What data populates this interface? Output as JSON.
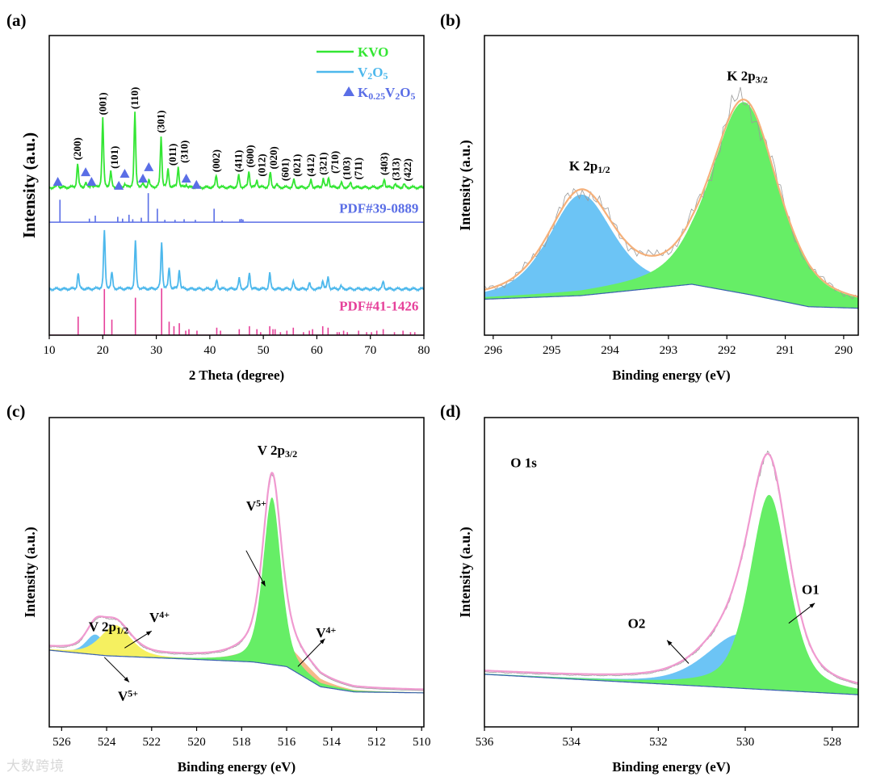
{
  "watermark": "大数跨境",
  "colors": {
    "kvo": "#33e633",
    "v2o5": "#4db8ec",
    "pdf39": "#5a6ee6",
    "pdf41": "#e6409a",
    "green_fill": "#66ee66",
    "blue_fill": "#6cc4f5",
    "yellow_fill": "#f5f060",
    "orange_fill": "#f5b98a",
    "envelope_b": "#f5b07a",
    "envelope_cd": "#f09ad0",
    "raw": "#9a9a9a",
    "bg_line": "#8a7a30"
  },
  "chart_data": [
    {
      "panel": "(a)",
      "type": "line",
      "xlabel": "2 Theta (degree)",
      "ylabel": "Intensity (a.u.)",
      "xlim": [
        10,
        80
      ],
      "ylim": [
        0,
        100
      ],
      "xticks": [
        "10",
        "20",
        "30",
        "40",
        "50",
        "60",
        "70",
        "80"
      ],
      "legend": {
        "placement": "top-right",
        "entries": [
          {
            "label": [
              {
                "t": "KVO"
              }
            ],
            "kind": "line",
            "color": "#33e633"
          },
          {
            "label": [
              {
                "t": "V"
              },
              {
                "t": "2",
                "sub": true
              },
              {
                "t": "O"
              },
              {
                "t": "5",
                "sub": true
              }
            ],
            "kind": "line",
            "color": "#4db8ec"
          },
          {
            "label": [
              {
                "t": "K"
              },
              {
                "t": "0.25",
                "sub": true
              },
              {
                "t": "V"
              },
              {
                "t": "2",
                "sub": true
              },
              {
                "t": "O"
              },
              {
                "t": "5",
                "sub": true
              }
            ],
            "kind": "triangle",
            "color": "#5a6ee6"
          }
        ]
      },
      "series": [
        {
          "name": "KVO",
          "kind": "pattern",
          "baseline": 49.3,
          "width": 0.35,
          "color": "#33e633",
          "peaks": [
            [
              11.6,
              1.5
            ],
            [
              15.3,
              8
            ],
            [
              16.8,
              1.5
            ],
            [
              17.9,
              1
            ],
            [
              20,
              23
            ],
            [
              21.5,
              5
            ],
            [
              23,
              1
            ],
            [
              24.1,
              1
            ],
            [
              26,
              25
            ],
            [
              27.5,
              1
            ],
            [
              28.6,
              2.5
            ],
            [
              30.9,
              17
            ],
            [
              32.2,
              6
            ],
            [
              34.1,
              7
            ],
            [
              35.6,
              1
            ],
            [
              37.5,
              0.5
            ],
            [
              41.2,
              4
            ],
            [
              45.4,
              4
            ],
            [
              47.3,
              5.5
            ],
            [
              48.8,
              2.5
            ],
            [
              51.3,
              5
            ],
            [
              52.5,
              1
            ],
            [
              55.7,
              2.5
            ],
            [
              58.9,
              2.5
            ],
            [
              61.2,
              3
            ],
            [
              62.2,
              3.5
            ],
            [
              64.6,
              1.5
            ],
            [
              66.3,
              1.5
            ],
            [
              72.6,
              3
            ],
            [
              74.6,
              1.2
            ],
            [
              76.3,
              1
            ]
          ]
        },
        {
          "name": "PDF#39-0889",
          "kind": "sticks",
          "baseline": 37.7,
          "color": "#5a6ee6",
          "sticks": [
            [
              12,
              7.5
            ],
            [
              17.5,
              1.2
            ],
            [
              18.6,
              2.2
            ],
            [
              22.8,
              1.8
            ],
            [
              23.7,
              1.2
            ],
            [
              24.9,
              2.5
            ],
            [
              25.6,
              1
            ],
            [
              27.2,
              1.5
            ],
            [
              28.5,
              9.7
            ],
            [
              30.2,
              4.5
            ],
            [
              31.6,
              0.8
            ],
            [
              33.5,
              0.8
            ],
            [
              35.2,
              1
            ],
            [
              37.3,
              0.8
            ],
            [
              40.8,
              4.5
            ],
            [
              42.3,
              0.6
            ],
            [
              45.6,
              1
            ],
            [
              45.9,
              1.1
            ],
            [
              46.2,
              0.9
            ]
          ]
        },
        {
          "name": "V2O5",
          "kind": "pattern",
          "baseline": 15.4,
          "width": 0.35,
          "color": "#4db8ec",
          "peaks": [
            [
              15.4,
              5.4
            ],
            [
              20.3,
              19.5
            ],
            [
              21.7,
              5.4
            ],
            [
              26.1,
              16
            ],
            [
              31,
              15.5
            ],
            [
              32.4,
              7
            ],
            [
              34.3,
              6.5
            ],
            [
              41.3,
              3
            ],
            [
              45.5,
              3.5
            ],
            [
              47.4,
              5.5
            ],
            [
              51.2,
              5.2
            ],
            [
              55.6,
              2.5
            ],
            [
              58.6,
              2
            ],
            [
              61.1,
              3
            ],
            [
              62.1,
              4
            ],
            [
              64.5,
              1
            ],
            [
              72.4,
              2.5
            ]
          ]
        },
        {
          "name": "PDF#41-1426",
          "kind": "sticks",
          "baseline": 0,
          "color": "#e6409a",
          "sticks": [
            [
              15.4,
              6.2
            ],
            [
              20.3,
              15.4
            ],
            [
              21.7,
              5.2
            ],
            [
              26.1,
              12.5
            ],
            [
              31,
              15.6
            ],
            [
              32.4,
              4.5
            ],
            [
              33.3,
              3
            ],
            [
              34.3,
              4
            ],
            [
              35.5,
              1.5
            ],
            [
              36.1,
              2
            ],
            [
              37.6,
              1.5
            ],
            [
              41.3,
              2.5
            ],
            [
              42,
              1.5
            ],
            [
              45.5,
              2
            ],
            [
              47.4,
              3
            ],
            [
              48.8,
              2
            ],
            [
              49.5,
              1
            ],
            [
              51.2,
              3
            ],
            [
              51.8,
              2
            ],
            [
              52.2,
              2
            ],
            [
              53.2,
              1
            ],
            [
              54.4,
              1.5
            ],
            [
              55.6,
              2.5
            ],
            [
              57.5,
              1
            ],
            [
              58.6,
              1.5
            ],
            [
              59.2,
              2
            ],
            [
              61.1,
              3
            ],
            [
              62.1,
              2.5
            ],
            [
              63.8,
              1
            ],
            [
              64.2,
              1
            ],
            [
              65,
              1.5
            ],
            [
              65.7,
              1
            ],
            [
              67.8,
              1.5
            ],
            [
              69.3,
              1
            ],
            [
              70.2,
              1
            ],
            [
              71.2,
              1.5
            ],
            [
              72.4,
              2
            ],
            [
              74.5,
              1
            ],
            [
              76.1,
              1.5
            ],
            [
              77.5,
              1
            ],
            [
              78.3,
              1
            ]
          ]
        }
      ],
      "series_labels": [
        {
          "text": "PDF#39-0889",
          "color": "#5a6ee6",
          "x": 79,
          "y": 40.8
        },
        {
          "text": "PDF#41-1426",
          "color": "#e6409a",
          "x": 79,
          "y": 8.2
        }
      ],
      "markers": {
        "symbol": "triangle",
        "color": "#5a6ee6",
        "points": [
          [
            11.6,
            51.2
          ],
          [
            16.8,
            54.4
          ],
          [
            17.9,
            51.2
          ],
          [
            23.0,
            49.9
          ],
          [
            24.1,
            53.9
          ],
          [
            27.5,
            52.3
          ],
          [
            28.6,
            56.1
          ],
          [
            35.6,
            52.3
          ],
          [
            37.5,
            50.2
          ]
        ]
      },
      "hkl_labels": [
        {
          "text": "(200)",
          "x": 15.3
        },
        {
          "text": "(001)",
          "x": 20
        },
        {
          "text": "(101)",
          "x": 21.5
        },
        {
          "text": "(110)",
          "x": 26
        },
        {
          "text": "(301)",
          "x": 30.9
        },
        {
          "text": "(011)",
          "x": 32.2
        },
        {
          "text": "(310)",
          "x": 34.1
        },
        {
          "text": "(002)",
          "x": 41.2
        },
        {
          "text": "(411)",
          "x": 45.4
        },
        {
          "text": "(600)",
          "x": 47.3
        },
        {
          "text": "(012)",
          "x": 48.8
        },
        {
          "text": "(020)",
          "x": 51.3
        },
        {
          "text": "(601)",
          "x": 52.5
        },
        {
          "text": "(021)",
          "x": 55.7
        },
        {
          "text": "(412)",
          "x": 58.9
        },
        {
          "text": "(321)",
          "x": 61.2
        },
        {
          "text": "(710)",
          "x": 62.2
        },
        {
          "text": "(103)",
          "x": 64.6
        },
        {
          "text": "(711)",
          "x": 66.3
        },
        {
          "text": "(403)",
          "x": 72.6
        },
        {
          "text": "(313)",
          "x": 74.6
        },
        {
          "text": "(422)",
          "x": 76.3
        }
      ]
    },
    {
      "panel": "(b)",
      "type": "area",
      "xlabel": "Binding energy (eV)",
      "ylabel": "Intensity (a.u.)",
      "xlim": [
        296.15,
        289.75
      ],
      "ylim": [
        0,
        100
      ],
      "xticks": [
        "296",
        "295",
        "294",
        "293",
        "292",
        "291",
        "290"
      ],
      "background": [
        [
          296.15,
          12
        ],
        [
          294.5,
          13.2
        ],
        [
          292.6,
          17
        ],
        [
          291.6,
          13.5
        ],
        [
          290.6,
          9.5
        ],
        [
          289.75,
          9
        ]
      ],
      "components": [
        {
          "name": "K 2p1/2",
          "center": 294.5,
          "height": 33.7,
          "fwhm": 1.3,
          "fill": "#6cc4f5"
        },
        {
          "name": "K 2p3/2",
          "center": 291.7,
          "height": 63.9,
          "fwhm": 1.35,
          "fill": "#66ee66"
        }
      ],
      "envelope_color": "#f5b07a",
      "raw_noise": 0.08,
      "annotations": [
        {
          "label": [
            {
              "t": "K 2p"
            },
            {
              "t": "1/2",
              "sub": true
            }
          ],
          "x": 294.7,
          "y": 55
        },
        {
          "label": [
            {
              "t": "K 2p"
            },
            {
              "t": "3/2",
              "sub": true
            }
          ],
          "x": 292.0,
          "y": 85
        }
      ]
    },
    {
      "panel": "(c)",
      "type": "area",
      "xlabel": "Binding energy (eV)",
      "ylabel": "Intensity (a.u.)",
      "xlim": [
        526.55,
        509.9
      ],
      "ylim": [
        0,
        100
      ],
      "xticks": [
        "526",
        "524",
        "522",
        "520",
        "518",
        "516",
        "514",
        "512",
        "510"
      ],
      "background": [
        [
          526.55,
          24.8
        ],
        [
          524,
          23
        ],
        [
          520,
          21.8
        ],
        [
          517.5,
          21
        ],
        [
          516,
          19.5
        ],
        [
          514.5,
          13
        ],
        [
          513,
          11.3
        ],
        [
          509.9,
          11
        ]
      ],
      "components": [
        {
          "name": "V5+ 2p1/2",
          "center": 524.5,
          "height": 6.5,
          "fwhm": 1.0,
          "fill": "#6cc4f5"
        },
        {
          "name": "V4+ 2p1/2",
          "center": 523.6,
          "height": 10,
          "fwhm": 1.6,
          "fill": "#f5f060"
        },
        {
          "name": "V4+ 2p3/2",
          "center": 516.3,
          "height": 7.5,
          "fwhm": 2.8,
          "fill": "#f5b98a"
        },
        {
          "name": "V5+ 2p3/2",
          "center": 516.65,
          "height": 54,
          "fwhm": 0.95,
          "fill": "#66ee66"
        }
      ],
      "envelope_color": "#f09ad0",
      "raw_noise": 0.015,
      "annotations": [
        {
          "label": [
            {
              "t": "V 2p"
            },
            {
              "t": "3/2",
              "sub": true
            }
          ],
          "x": 517.3,
          "y": 88
        },
        {
          "label": [
            {
              "t": "V 2p"
            },
            {
              "t": "1/2",
              "sub": true
            }
          ],
          "x": 524.8,
          "y": 31
        },
        {
          "label": [
            {
              "t": "V"
            },
            {
              "t": "5+",
              "sup": true
            }
          ],
          "x": 517.8,
          "y": 70,
          "arrow": [
            [
              517.8,
              57
            ],
            [
              516.95,
              45.5
            ]
          ]
        },
        {
          "label": [
            {
              "t": "V"
            },
            {
              "t": "4+",
              "sup": true
            }
          ],
          "x": 522.1,
          "y": 34,
          "arrow": [
            [
              523.2,
              25.5
            ],
            [
              522.0,
              31
            ]
          ]
        },
        {
          "label": [
            {
              "t": "V"
            },
            {
              "t": "5+",
              "sup": true
            }
          ],
          "x": 523.5,
          "y": 8.5,
          "arrow": [
            [
              524.1,
              22.5
            ],
            [
              523.0,
              14.5
            ]
          ]
        },
        {
          "label": [
            {
              "t": "V"
            },
            {
              "t": "4+",
              "sup": true
            }
          ],
          "x": 514.7,
          "y": 29,
          "arrow": [
            [
              515.5,
              19.5
            ],
            [
              514.3,
              28.5
            ]
          ]
        }
      ]
    },
    {
      "panel": "(d)",
      "type": "area",
      "xlabel": "Binding energy (eV)",
      "ylabel": "Intensity (a.u.)",
      "xlim": [
        536.0,
        527.4
      ],
      "ylim": [
        0,
        100
      ],
      "xticks": [
        "536",
        "534",
        "532",
        "530",
        "528"
      ],
      "background": [
        [
          536.0,
          17
        ],
        [
          527.4,
          10.4
        ]
      ],
      "components": [
        {
          "name": "O2",
          "center": 530.1,
          "height": 17.5,
          "fwhm": 1.9,
          "fill": "#6cc4f5"
        },
        {
          "name": "O1",
          "center": 529.45,
          "height": 63,
          "fwhm": 1.05,
          "fill": "#66ee66"
        }
      ],
      "envelope_color": "#f09ad0",
      "raw_noise": 0.02,
      "annotations": [
        {
          "label": [
            {
              "t": "O 1s"
            }
          ],
          "x": 535.4,
          "y": 84
        },
        {
          "label": [
            {
              "t": "O2"
            }
          ],
          "x": 532.7,
          "y": 32,
          "arrow": [
            [
              531.3,
              20.5
            ],
            [
              531.8,
              28
            ]
          ]
        },
        {
          "label": [
            {
              "t": "O1"
            }
          ],
          "x": 528.7,
          "y": 43,
          "arrow": [
            [
              529.0,
              33.5
            ],
            [
              528.4,
              40
            ]
          ]
        }
      ]
    }
  ]
}
